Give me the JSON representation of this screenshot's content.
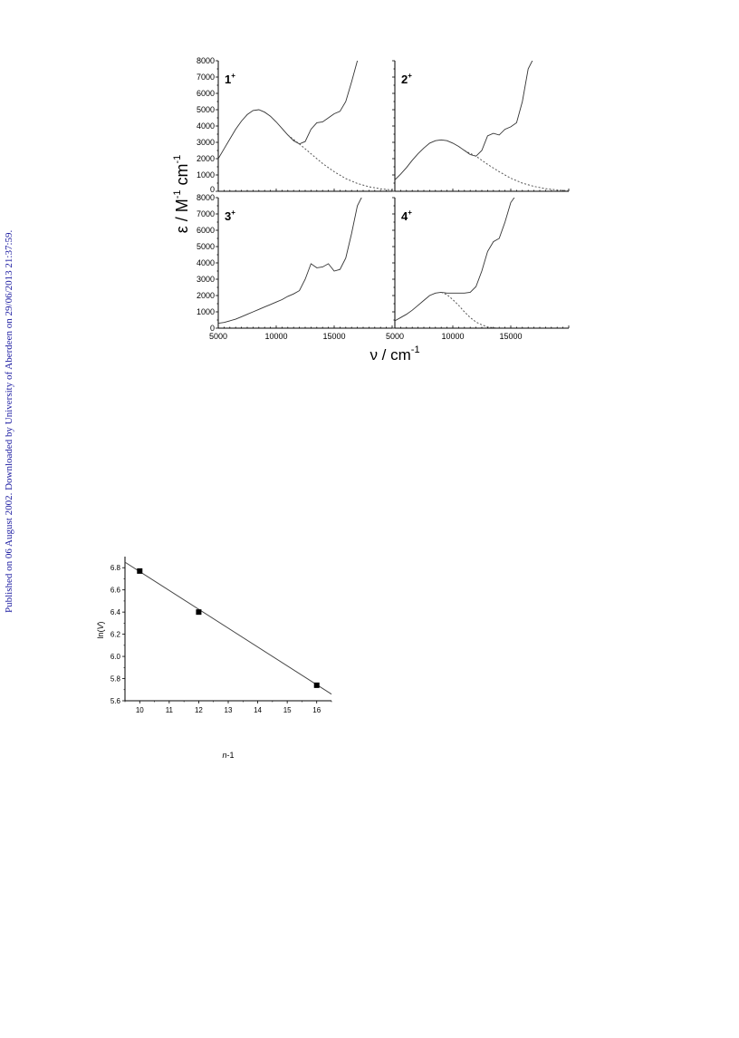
{
  "watermark": "Published on 06 August 2002. Downloaded by University of Aberdeen on 29/06/2013 21:37:59.",
  "chart_data": [
    {
      "type": "line",
      "figure": "spectra",
      "ylabel_prefix": "ε / M",
      "ylabel_exp1": "-1",
      "ylabel_mid": " cm",
      "ylabel_exp2": "-1",
      "xlabel": "ν / cm",
      "xlabel_exp": "-1",
      "xlim": [
        5000,
        20000
      ],
      "ylim": [
        0,
        8000
      ],
      "x_ticks": [
        5000,
        10000,
        15000
      ],
      "y_ticks": [
        0,
        1000,
        2000,
        3000,
        4000,
        5000,
        6000,
        7000,
        8000
      ],
      "panels": [
        {
          "label": "1",
          "charge": "+",
          "series": [
            {
              "style": "solid",
              "x": [
                5000,
                5500,
                6000,
                6500,
                7000,
                7500,
                8000,
                8500,
                9000,
                9500,
                10000,
                10500,
                11000,
                11500,
                12000,
                12500,
                13000,
                13500,
                14000,
                14500,
                15000,
                15500,
                16000,
                16500,
                17000,
                17500
              ],
              "y": [
                2000,
                2600,
                3200,
                3800,
                4300,
                4700,
                4950,
                5000,
                4850,
                4600,
                4250,
                3850,
                3450,
                3100,
                2900,
                3050,
                3800,
                4200,
                4250,
                4500,
                4750,
                4900,
                5500,
                6700,
                8000,
                8200
              ]
            },
            {
              "style": "dashed",
              "x": [
                11000,
                12000,
                13000,
                14000,
                15000,
                16000,
                17000,
                18000,
                19000,
                20000
              ],
              "y": [
                3450,
                2900,
                2300,
                1700,
                1200,
                780,
                480,
                280,
                150,
                80
              ]
            }
          ]
        },
        {
          "label": "2",
          "charge": "+",
          "series": [
            {
              "style": "solid",
              "x": [
                5000,
                5500,
                6000,
                6500,
                7000,
                7500,
                8000,
                8500,
                9000,
                9500,
                10000,
                10500,
                11000,
                11500,
                12000,
                12500,
                13000,
                13500,
                14000,
                14500,
                15000,
                15500,
                16000,
                16500,
                17000
              ],
              "y": [
                700,
                1050,
                1450,
                1900,
                2300,
                2650,
                2950,
                3100,
                3150,
                3100,
                2950,
                2750,
                2500,
                2250,
                2150,
                2500,
                3400,
                3550,
                3450,
                3800,
                3950,
                4200,
                5500,
                7500,
                8200
              ]
            },
            {
              "style": "dashed",
              "x": [
                11000,
                12000,
                13000,
                14000,
                15000,
                16000,
                17000,
                18000,
                19000,
                20000
              ],
              "y": [
                2500,
                2150,
                1650,
                1200,
                800,
                500,
                300,
                160,
                80,
                40
              ]
            }
          ]
        },
        {
          "label": "3",
          "charge": "+",
          "series": [
            {
              "style": "solid",
              "x": [
                5000,
                5500,
                6000,
                6500,
                7000,
                7500,
                8000,
                8500,
                9000,
                9500,
                10000,
                10500,
                11000,
                11500,
                12000,
                12500,
                13000,
                13500,
                14000,
                14500,
                15000,
                15500,
                16000,
                16500,
                17000,
                17500
              ],
              "y": [
                300,
                350,
                450,
                550,
                700,
                850,
                1000,
                1150,
                1300,
                1450,
                1600,
                1750,
                1950,
                2100,
                2300,
                3000,
                3950,
                3700,
                3750,
                3950,
                3500,
                3600,
                4300,
                5800,
                7500,
                8200
              ]
            }
          ]
        },
        {
          "label": "4",
          "charge": "+",
          "series": [
            {
              "style": "solid",
              "x": [
                5000,
                5500,
                6000,
                6500,
                7000,
                7500,
                8000,
                8500,
                9000,
                9500,
                10000,
                10500,
                11000,
                11500,
                12000,
                12500,
                13000,
                13500,
                14000,
                14500,
                15000,
                15500,
                16000
              ],
              "y": [
                450,
                650,
                850,
                1100,
                1400,
                1700,
                2000,
                2150,
                2200,
                2150,
                2150,
                2150,
                2150,
                2200,
                2550,
                3500,
                4700,
                5300,
                5500,
                6500,
                7700,
                8200,
                8300
              ]
            },
            {
              "style": "dashed",
              "x": [
                9000,
                9500,
                10000,
                10500,
                11000,
                11500,
                12000,
                12500,
                13000,
                13500,
                14000
              ],
              "y": [
                2200,
                2050,
                1750,
                1400,
                1000,
                650,
                380,
                200,
                80,
                30,
                10
              ]
            }
          ]
        }
      ]
    },
    {
      "type": "scatter",
      "figure": "fit",
      "xlabel_italic": "n",
      "xlabel_rest": "-1",
      "ylabel_prefix": "ln(",
      "ylabel_italic": "V",
      "ylabel_suffix": ")",
      "xlim": [
        9.5,
        16.5
      ],
      "ylim": [
        5.6,
        6.9
      ],
      "x_ticks": [
        "10",
        "11",
        "12",
        "13",
        "14",
        "15",
        "16"
      ],
      "y_ticks": [
        "5.6",
        "5.8",
        "6.0",
        "6.2",
        "6.4",
        "6.6",
        "6.8"
      ],
      "points": [
        {
          "x": 10,
          "y": 6.77
        },
        {
          "x": 12,
          "y": 6.4
        },
        {
          "x": 16,
          "y": 5.74
        }
      ],
      "fit_line": {
        "x": [
          9.5,
          16.5
        ],
        "y": [
          6.85,
          5.66
        ]
      }
    }
  ]
}
